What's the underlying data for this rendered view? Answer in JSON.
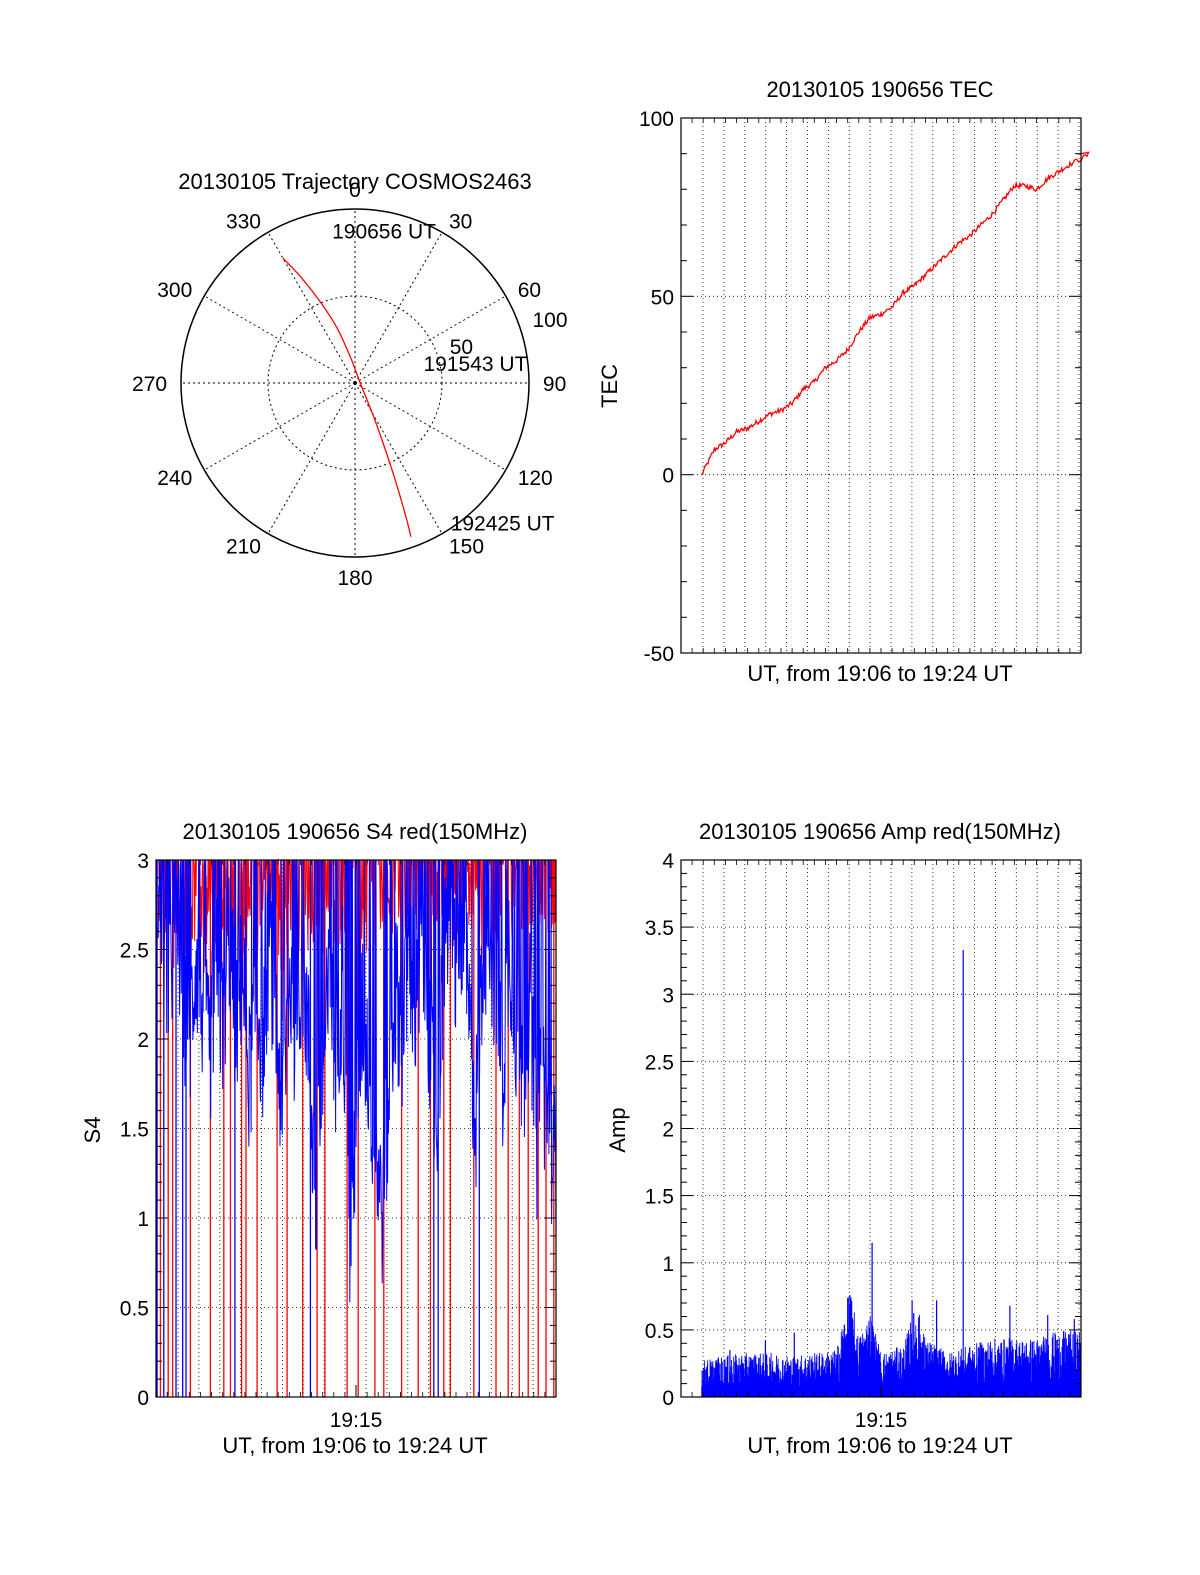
{
  "chart_data": [
    {
      "id": "trajectory",
      "type": "polar",
      "title": "20130105 Trajectory COSMOS2463",
      "azimuth_labels": [
        "0",
        "30",
        "60",
        "90",
        "120",
        "150",
        "180",
        "210",
        "240",
        "270",
        "300",
        "330"
      ],
      "radial_ticks": [
        50,
        100
      ],
      "radial_tick_labels": [
        "50",
        "100"
      ],
      "rmax": 100,
      "track": {
        "color": "#ff0000",
        "points": [
          {
            "az": 330,
            "r": 83
          },
          {
            "az": 333,
            "r": 68
          },
          {
            "az": 337,
            "r": 50
          },
          {
            "az": 342,
            "r": 33
          },
          {
            "az": 350,
            "r": 15
          },
          {
            "az": 90,
            "r": 3
          },
          {
            "az": 152,
            "r": 25
          },
          {
            "az": 157,
            "r": 55
          },
          {
            "az": 159,
            "r": 80
          },
          {
            "az": 160,
            "r": 94
          }
        ]
      },
      "annotations": [
        {
          "text": "190656 UT",
          "az": 351,
          "r": 84
        },
        {
          "text": "191543 UT",
          "az": 80,
          "r": 40
        },
        {
          "text": "192425 UT",
          "az": 147,
          "r": 101
        }
      ]
    },
    {
      "id": "tec",
      "type": "line",
      "title": "20130105 190656 TEC",
      "xlabel": "UT, from 19:06 to 19:24 UT",
      "ylabel": "TEC",
      "xlim": [
        "19:06",
        "19:24"
      ],
      "ylim": [
        -50,
        100
      ],
      "yticks": [
        -50,
        0,
        50,
        100
      ],
      "ytick_labels": [
        "-50",
        "0",
        "50",
        "100"
      ],
      "x_grid_count": 19,
      "series": [
        {
          "color": "#ff0000",
          "x_start": "19:06:56",
          "x_end": "19:24:25",
          "points": [
            [
              "19:06:56",
              0
            ],
            [
              "19:07:30",
              7
            ],
            [
              "19:08:00",
              9
            ],
            [
              "19:08:30",
              12
            ],
            [
              "19:09:00",
              13
            ],
            [
              "19:09:30",
              15
            ],
            [
              "19:10:00",
              17
            ],
            [
              "19:10:30",
              18
            ],
            [
              "19:11:00",
              20
            ],
            [
              "19:11:30",
              24
            ],
            [
              "19:12:00",
              26
            ],
            [
              "19:12:30",
              30
            ],
            [
              "19:13:00",
              32
            ],
            [
              "19:13:30",
              35
            ],
            [
              "19:14:00",
              40
            ],
            [
              "19:14:30",
              44
            ],
            [
              "19:15:00",
              45
            ],
            [
              "19:15:30",
              47
            ],
            [
              "19:16:00",
              51
            ],
            [
              "19:16:30",
              53
            ],
            [
              "19:17:00",
              56
            ],
            [
              "19:17:30",
              59
            ],
            [
              "19:18:00",
              62
            ],
            [
              "19:18:30",
              65
            ],
            [
              "19:19:00",
              67
            ],
            [
              "19:19:30",
              70
            ],
            [
              "19:20:00",
              73
            ],
            [
              "19:20:30",
              77
            ],
            [
              "19:21:00",
              81
            ],
            [
              "19:21:30",
              81
            ],
            [
              "19:22:00",
              80
            ],
            [
              "19:22:30",
              83
            ],
            [
              "19:23:00",
              85
            ],
            [
              "19:23:30",
              87
            ],
            [
              "19:24:25",
              90
            ]
          ]
        }
      ]
    },
    {
      "id": "s4",
      "type": "line",
      "title": "20130105 190656 S4 red(150MHz)",
      "xlabel": "UT, from 19:06 to 19:24 UT",
      "ylabel": "S4",
      "xlim": [
        "19:06",
        "19:24"
      ],
      "ylim": [
        0,
        3
      ],
      "yticks": [
        0,
        0.5,
        1,
        1.5,
        2,
        2.5,
        3
      ],
      "ytick_labels": [
        "0",
        "0.5",
        "1",
        "1.5",
        "2",
        "2.5",
        "3"
      ],
      "xtick_labels": [
        {
          "x": "19:15",
          "label": "19:15"
        }
      ],
      "x_grid_count": 19,
      "series": [
        {
          "name": "red",
          "color": "#ff0000",
          "x_start": "19:06:00",
          "x_end": "19:24:00",
          "profile": [
            [
              0,
              3
            ],
            [
              0.3,
              2.6
            ],
            [
              0.6,
              2.9
            ],
            [
              0.9,
              2.5
            ],
            [
              1.2,
              2.8
            ],
            [
              1.5,
              2.3
            ],
            [
              1.8,
              2.9
            ],
            [
              2.1,
              2.4
            ],
            [
              2.4,
              2.9
            ],
            [
              2.7,
              2.2
            ],
            [
              3.0,
              2.8
            ],
            [
              3.3,
              2.5
            ],
            [
              3.6,
              2.9
            ],
            [
              3.9,
              2.4
            ],
            [
              4.2,
              2.8
            ],
            [
              4.5,
              2.6
            ],
            [
              4.8,
              2.9
            ],
            [
              5.1,
              2.5
            ],
            [
              5.4,
              2.9
            ],
            [
              5.7,
              2.3
            ],
            [
              6.0,
              2.8
            ],
            [
              6.3,
              2.6
            ],
            [
              6.6,
              2.9
            ],
            [
              6.9,
              2.4
            ],
            [
              7.2,
              2.8
            ],
            [
              7.5,
              2.7
            ],
            [
              7.8,
              2.9
            ],
            [
              8.1,
              2.5
            ],
            [
              8.4,
              2.9
            ],
            [
              8.7,
              2.6
            ],
            [
              9.0,
              2.9
            ],
            [
              9.3,
              2.4
            ],
            [
              9.6,
              2.8
            ],
            [
              9.9,
              2.6
            ],
            [
              10.2,
              2.9
            ],
            [
              10.5,
              2.5
            ],
            [
              10.8,
              2.9
            ],
            [
              11.1,
              2.6
            ],
            [
              11.4,
              2.9
            ],
            [
              11.7,
              2.7
            ],
            [
              12.0,
              2.9
            ],
            [
              12.3,
              2.5
            ],
            [
              12.6,
              2.9
            ],
            [
              12.9,
              2.7
            ],
            [
              13.2,
              2.9
            ],
            [
              13.5,
              2.6
            ],
            [
              13.8,
              2.9
            ],
            [
              14.1,
              2.7
            ],
            [
              14.4,
              2.9
            ],
            [
              14.7,
              2.6
            ],
            [
              15.0,
              2.9
            ],
            [
              15.3,
              2.7
            ],
            [
              15.6,
              2.9
            ],
            [
              15.9,
              2.6
            ],
            [
              16.2,
              2.9
            ],
            [
              16.5,
              2.7
            ],
            [
              16.8,
              2.9
            ],
            [
              17.1,
              2.6
            ],
            [
              17.4,
              2.9
            ],
            [
              17.7,
              2.7
            ],
            [
              18.0,
              2.9
            ]
          ],
          "drops_to_zero_minutes": [
            0.2,
            0.55,
            0.75,
            1.55,
            2.45,
            3.05,
            3.35,
            3.85,
            4.05,
            4.55,
            5.45,
            5.9,
            6.6,
            7.25,
            7.6,
            8.6,
            9.1,
            9.85,
            10.25,
            11.05,
            11.8,
            12.35,
            12.95,
            13.25,
            14.3,
            15.3,
            15.85,
            16.35,
            16.75,
            17.2,
            17.55,
            17.9
          ]
        },
        {
          "name": "blue",
          "color": "#0000ff",
          "x_start": "19:06:00",
          "x_end": "19:24:00",
          "profile": [
            [
              0,
              2.8
            ],
            [
              0.3,
              2.4
            ],
            [
              0.6,
              2.0
            ],
            [
              0.9,
              2.6
            ],
            [
              1.2,
              2.1
            ],
            [
              1.5,
              1.8
            ],
            [
              1.8,
              2.3
            ],
            [
              2.1,
              2.0
            ],
            [
              2.4,
              1.7
            ],
            [
              2.7,
              2.2
            ],
            [
              3.0,
              1.9
            ],
            [
              3.3,
              2.4
            ],
            [
              3.6,
              1.9
            ],
            [
              3.9,
              2.2
            ],
            [
              4.2,
              1.6
            ],
            [
              4.5,
              2.1
            ],
            [
              4.8,
              1.8
            ],
            [
              5.1,
              2.4
            ],
            [
              5.4,
              1.9
            ],
            [
              5.7,
              1.4
            ],
            [
              6.0,
              2.2
            ],
            [
              6.3,
              1.8
            ],
            [
              6.6,
              2.3
            ],
            [
              6.9,
              1.7
            ],
            [
              7.2,
              0.9
            ],
            [
              7.5,
              1.6
            ],
            [
              7.8,
              2.1
            ],
            [
              8.1,
              1.7
            ],
            [
              8.4,
              2.2
            ],
            [
              8.7,
              0.5
            ],
            [
              9.0,
              1.4
            ],
            [
              9.3,
              2.0
            ],
            [
              9.6,
              1.6
            ],
            [
              9.9,
              1.2
            ],
            [
              10.2,
              0.85
            ],
            [
              10.5,
              1.6
            ],
            [
              10.8,
              2.1
            ],
            [
              11.1,
              1.8
            ],
            [
              11.4,
              2.3
            ],
            [
              11.7,
              1.9
            ],
            [
              12.0,
              2.4
            ],
            [
              12.3,
              1.9
            ],
            [
              12.6,
              1.3
            ],
            [
              12.9,
              2.1
            ],
            [
              13.2,
              2.6
            ],
            [
              13.5,
              2.2
            ],
            [
              13.8,
              2.5
            ],
            [
              14.1,
              1.9
            ],
            [
              14.4,
              1.4
            ],
            [
              14.7,
              2.3
            ],
            [
              15.0,
              2.5
            ],
            [
              15.3,
              2.0
            ],
            [
              15.6,
              1.6
            ],
            [
              15.9,
              2.4
            ],
            [
              16.2,
              1.9
            ],
            [
              16.5,
              1.5
            ],
            [
              16.8,
              2.1
            ],
            [
              17.1,
              1.2
            ],
            [
              17.4,
              1.6
            ],
            [
              17.7,
              1.3
            ],
            [
              18.0,
              1.1
            ]
          ],
          "drops_to_zero_minutes": [
            0.05,
            0.35,
            0.9,
            1.2,
            1.35,
            3.55,
            6.95,
            12.5,
            12.7,
            14.55
          ]
        }
      ]
    },
    {
      "id": "amp",
      "type": "line",
      "title": "20130105 190656 Amp red(150MHz)",
      "xlabel": "UT, from 19:06 to 19:24 UT",
      "ylabel": "Amp",
      "xlim": [
        "19:06",
        "19:24"
      ],
      "ylim": [
        0,
        4
      ],
      "yticks": [
        0,
        0.5,
        1,
        1.5,
        2,
        2.5,
        3,
        3.5,
        4
      ],
      "ytick_labels": [
        "0",
        "0.5",
        "1",
        "1.5",
        "2",
        "2.5",
        "3",
        "3.5",
        "4"
      ],
      "xtick_labels": [
        {
          "x": "19:15",
          "label": "19:15"
        }
      ],
      "x_grid_count": 19,
      "series": [
        {
          "name": "blue",
          "color": "#0000ff",
          "x_start": "19:06:56",
          "x_end": "19:24:00",
          "profile": [
            [
              0.93,
              0.25
            ],
            [
              2,
              0.28
            ],
            [
              3,
              0.3
            ],
            [
              4,
              0.3
            ],
            [
              5,
              0.28
            ],
            [
              6,
              0.3
            ],
            [
              7,
              0.32
            ],
            [
              7.6,
              0.75
            ],
            [
              8,
              0.4
            ],
            [
              8.5,
              0.6
            ],
            [
              9,
              0.3
            ],
            [
              10,
              0.35
            ],
            [
              10.6,
              0.65
            ],
            [
              11,
              0.4
            ],
            [
              12,
              0.3
            ],
            [
              13,
              0.35
            ],
            [
              14,
              0.4
            ],
            [
              15,
              0.4
            ],
            [
              16,
              0.4
            ],
            [
              17,
              0.45
            ],
            [
              18,
              0.45
            ]
          ],
          "spikes": [
            [
              "19:08:12",
              0.35
            ],
            [
              "19:09:48",
              0.42
            ],
            [
              "19:11:06",
              0.48
            ],
            [
              "19:13:36",
              0.76
            ],
            [
              "19:14:36",
              1.15
            ],
            [
              "19:16:24",
              0.72
            ],
            [
              "19:17:30",
              0.72
            ],
            [
              "19:18:42",
              3.33
            ],
            [
              "19:20:48",
              0.68
            ],
            [
              "19:22:30",
              0.61
            ],
            [
              "19:23:42",
              0.58
            ]
          ]
        }
      ]
    }
  ]
}
